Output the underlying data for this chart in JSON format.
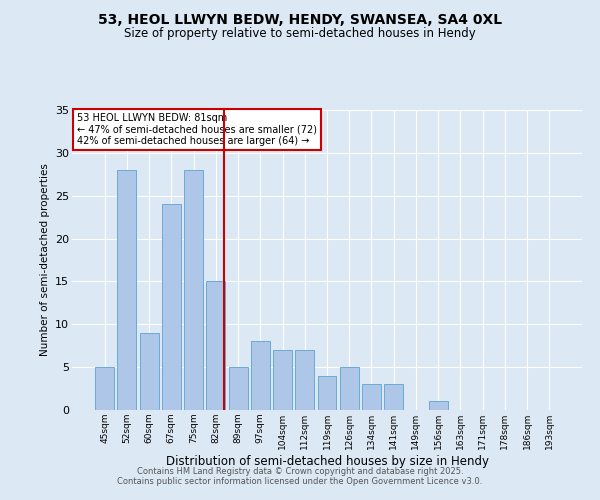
{
  "title1": "53, HEOL LLWYN BEDW, HENDY, SWANSEA, SA4 0XL",
  "title2": "Size of property relative to semi-detached houses in Hendy",
  "xlabel": "Distribution of semi-detached houses by size in Hendy",
  "ylabel": "Number of semi-detached properties",
  "categories": [
    "45sqm",
    "52sqm",
    "60sqm",
    "67sqm",
    "75sqm",
    "82sqm",
    "89sqm",
    "97sqm",
    "104sqm",
    "112sqm",
    "119sqm",
    "126sqm",
    "134sqm",
    "141sqm",
    "149sqm",
    "156sqm",
    "163sqm",
    "171sqm",
    "178sqm",
    "186sqm",
    "193sqm"
  ],
  "values": [
    5,
    28,
    9,
    24,
    28,
    15,
    5,
    8,
    7,
    7,
    4,
    5,
    3,
    3,
    0,
    1,
    0,
    0,
    0,
    0,
    0
  ],
  "bar_color": "#aec6e8",
  "bar_edge_color": "#6aaad4",
  "property_label": "53 HEOL LLWYN BEDW: 81sqm",
  "annotation_smaller": "← 47% of semi-detached houses are smaller (72)",
  "annotation_larger": "42% of semi-detached houses are larger (64) →",
  "vline_color": "#cc0000",
  "vline_bin_index": 5,
  "annotation_box_color": "#ffffff",
  "annotation_box_edge_color": "#cc0000",
  "ylim": [
    0,
    35
  ],
  "yticks": [
    0,
    5,
    10,
    15,
    20,
    25,
    30,
    35
  ],
  "bg_color": "#dce9f5",
  "plot_bg_color": "#dce9f5",
  "footer1": "Contains HM Land Registry data © Crown copyright and database right 2025.",
  "footer2": "Contains public sector information licensed under the Open Government Licence v3.0."
}
